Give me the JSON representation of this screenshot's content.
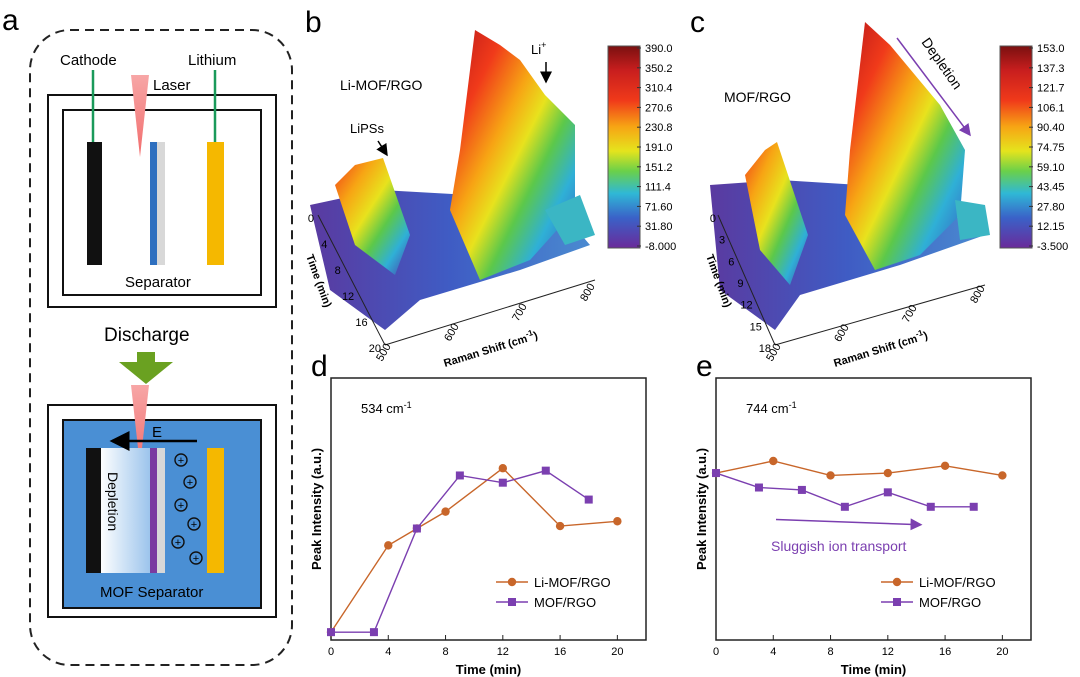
{
  "panels": {
    "a": {
      "letter": "a",
      "cathode": "Cathode",
      "lithium": "Lithium",
      "laser": "Laser",
      "separator": "Separator",
      "discharge": "Discharge",
      "field": "E",
      "depletion": "Depletion",
      "mof_separator": "MOF Separator",
      "ion_symbol": "+"
    },
    "b": {
      "letter": "b",
      "sample": "Li-MOF/RGO",
      "annot_lipss": "LiPSs",
      "annot_li": "Li",
      "annot_li_sup": "+",
      "time_label": "Time (min)",
      "time_ticks": [
        "0",
        "4",
        "8",
        "12",
        "16",
        "20"
      ],
      "shift_label": "Raman Shift (cm",
      "shift_sup": "-1",
      "shift_tail": ")",
      "shift_ticks": [
        "500",
        "600",
        "700",
        "800"
      ],
      "colorbar": [
        "390.0",
        "350.2",
        "310.4",
        "270.6",
        "230.8",
        "191.0",
        "151.2",
        "111.4",
        "71.60",
        "31.80",
        "-8.000"
      ]
    },
    "c": {
      "letter": "c",
      "sample": "MOF/RGO",
      "annot_depletion": "Depletion",
      "time_label": "Time (min)",
      "time_ticks": [
        "0",
        "3",
        "6",
        "9",
        "12",
        "15",
        "18"
      ],
      "shift_label": "Raman Shift (cm",
      "shift_sup": "-1",
      "shift_tail": ")",
      "shift_ticks": [
        "500",
        "600",
        "700",
        "800"
      ],
      "colorbar": [
        "153.0",
        "137.3",
        "121.7",
        "106.1",
        "90.40",
        "74.75",
        "59.10",
        "43.45",
        "27.80",
        "12.15",
        "-3.500"
      ]
    }
  },
  "colors": {
    "limof": "#c8662a",
    "mof": "#7b3fb0",
    "green_arrow": "#6aa121",
    "blue_box": "#4a8fd4",
    "yellow": "#f5b800"
  },
  "chart_data": [
    {
      "id": "d",
      "letter": "d",
      "type": "line",
      "annotation": "534 cm",
      "annotation_sup": "-1",
      "xlabel": "Time (min)",
      "ylabel": "Peak Intensity (a.u.)",
      "xlim": [
        0,
        22
      ],
      "ylim": [
        0,
        1
      ],
      "x_ticks": [
        "0",
        "4",
        "8",
        "12",
        "16",
        "20"
      ],
      "series": [
        {
          "name": "Li-MOF/RGO",
          "marker": "circle",
          "x": [
            0,
            4,
            6,
            8,
            12,
            16,
            20
          ],
          "y": [
            0.0,
            0.36,
            0.43,
            0.5,
            0.68,
            0.44,
            0.46
          ]
        },
        {
          "name": "MOF/RGO",
          "marker": "square",
          "x": [
            0,
            3,
            6,
            9,
            12,
            15,
            18
          ],
          "y": [
            0.0,
            0.0,
            0.43,
            0.65,
            0.62,
            0.67,
            0.55
          ]
        }
      ]
    },
    {
      "id": "e",
      "letter": "e",
      "type": "line",
      "annotation": "744 cm",
      "annotation_sup": "-1",
      "caption": "Sluggish ion transport",
      "xlabel": "Time (min)",
      "ylabel": "Peak Intensity (a.u.)",
      "xlim": [
        0,
        22
      ],
      "ylim": [
        0,
        1
      ],
      "x_ticks": [
        "0",
        "4",
        "8",
        "12",
        "16",
        "20"
      ],
      "series": [
        {
          "name": "Li-MOF/RGO",
          "marker": "circle",
          "x": [
            0,
            4,
            8,
            12,
            16,
            20
          ],
          "y": [
            0.66,
            0.71,
            0.65,
            0.66,
            0.69,
            0.65
          ]
        },
        {
          "name": "MOF/RGO",
          "marker": "square",
          "x": [
            0,
            3,
            6,
            9,
            12,
            15,
            18
          ],
          "y": [
            0.66,
            0.6,
            0.59,
            0.52,
            0.58,
            0.52,
            0.52
          ]
        }
      ]
    }
  ]
}
